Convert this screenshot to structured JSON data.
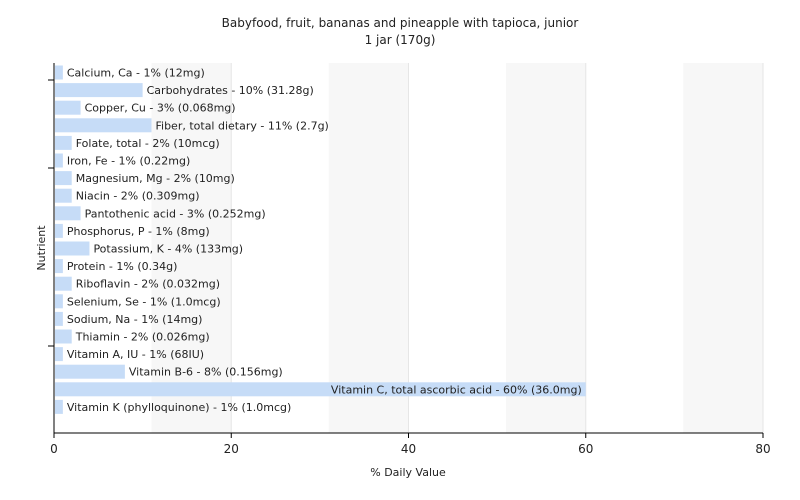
{
  "chart_data": {
    "type": "bar",
    "orientation": "horizontal",
    "title": "Babyfood, fruit, bananas and pineapple with tapioca, junior",
    "subtitle": "1 jar (170g)",
    "xlabel": "% Daily Value",
    "ylabel": "Nutrient",
    "xlim": [
      0,
      80
    ],
    "xticks": [
      "0",
      "20",
      "40",
      "60",
      "80"
    ],
    "grid": true,
    "bar_color": "#c6dcf7",
    "categories": [
      "Calcium, Ca - 1% (12mg)",
      "Carbohydrates - 10% (31.28g)",
      "Copper, Cu - 3% (0.068mg)",
      "Fiber, total dietary - 11% (2.7g)",
      "Folate, total - 2% (10mcg)",
      "Iron, Fe - 1% (0.22mg)",
      "Magnesium, Mg - 2% (10mg)",
      "Niacin - 2% (0.309mg)",
      "Pantothenic acid - 3% (0.252mg)",
      "Phosphorus, P - 1% (8mg)",
      "Potassium, K - 4% (133mg)",
      "Protein - 1% (0.34g)",
      "Riboflavin - 2% (0.032mg)",
      "Selenium, Se - 1% (1.0mcg)",
      "Sodium, Na - 1% (14mg)",
      "Thiamin - 2% (0.026mg)",
      "Vitamin A, IU - 1% (68IU)",
      "Vitamin B-6 - 8% (0.156mg)",
      "Vitamin C, total ascorbic acid - 60% (36.0mg)",
      "Vitamin K (phylloquinone) - 1% (1.0mcg)"
    ],
    "values": [
      1,
      10,
      3,
      11,
      2,
      1,
      2,
      2,
      3,
      1,
      4,
      1,
      2,
      1,
      1,
      2,
      1,
      8,
      60,
      1
    ]
  }
}
